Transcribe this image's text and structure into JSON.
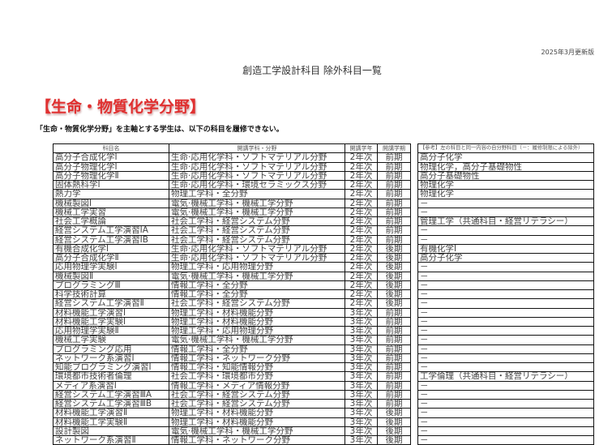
{
  "header": {
    "edition": "2025年3月更新版",
    "title": "創造工学設計科目 除外科目一覧"
  },
  "section": {
    "heading": "【生命・物質化学分野】",
    "note": "「生命・物質化学分野」を主軸とする学生は、以下の科目を履修できない。"
  },
  "table": {
    "headers": [
      "科目名",
      "開講学科・分野",
      "開講学年",
      "開講学期"
    ],
    "ref_header": "【参考】左の科目と同一内容の自分野科目（－：履修制限による除外）",
    "rows": [
      [
        "高分子合成化学Ⅰ",
        "生命·応用化学科・ソフトマテリアル分野",
        "2年次",
        "前期",
        "高分子化学"
      ],
      [
        "高分子物理化学Ⅰ",
        "生命·応用化学科・ソフトマテリアル分野",
        "2年次",
        "前期",
        "物理化学，高分子基礎物性"
      ],
      [
        "高分子物理化学Ⅱ",
        "生命·応用化学科・ソフトマテリアル分野",
        "2年次",
        "前期",
        "高分子基礎物性"
      ],
      [
        "固体熱科学Ⅰ",
        "生命·応用化学科・環境セラミックス分野",
        "2年次",
        "前期",
        "物理化学"
      ],
      [
        "熱力学",
        "物理工学科・全分野",
        "2年次",
        "前期",
        "物理化学"
      ],
      [
        "機械製図Ⅰ",
        "電気·機械工学科・機械工学分野",
        "2年次",
        "前期",
        "－"
      ],
      [
        "機械工学実習",
        "電気·機械工学科・機械工学分野",
        "2年次",
        "前期",
        "－"
      ],
      [
        "社会工学概論",
        "社会工学科・経営システム分野",
        "2年次",
        "前期",
        "管理工学（共通科目・経営リテラシー）"
      ],
      [
        "経営システム工学演習ⅠA",
        "社会工学科・経営システム分野",
        "2年次",
        "前期",
        "－"
      ],
      [
        "経営システム工学演習ⅠB",
        "社会工学科・経営システム分野",
        "2年次",
        "前期",
        "－"
      ],
      [
        "有機合成化学Ⅰ",
        "生命·応用化学科・ソフトマテリアル分野",
        "2年次",
        "後期",
        "有機化学Ⅰ"
      ],
      [
        "高分子合成化学Ⅱ",
        "生命·応用化学科・ソフトマテリアル分野",
        "2年次",
        "後期",
        "高分子化学"
      ],
      [
        "応用物理学実験Ⅰ",
        "物理工学科・応用物理分野",
        "2年次",
        "後期",
        "－"
      ],
      [
        "機械製図Ⅱ",
        "電気·機械工学科・機械工学分野",
        "2年次",
        "後期",
        "－"
      ],
      [
        "プログラミングⅢ",
        "情報工学科・全分野",
        "2年次",
        "後期",
        "－"
      ],
      [
        "科学技術計算",
        "情報工学科・全分野",
        "2年次",
        "後期",
        "－"
      ],
      [
        "経営システム工学演習Ⅱ",
        "社会工学科・経営システム分野",
        "2年次",
        "後期",
        "－"
      ],
      [
        "材料機能工学演習Ⅰ",
        "物理工学科・材料機能分野",
        "3年次",
        "前期",
        "－"
      ],
      [
        "材料機能工学実験Ⅰ",
        "物理工学科・材料機能分野",
        "3年次",
        "前期",
        "－"
      ],
      [
        "応用物理学実験Ⅱ",
        "物理工学科・応用物理分野",
        "3年次",
        "前期",
        "－"
      ],
      [
        "機械工学実験",
        "電気·機械工学科・機械工学分野",
        "3年次",
        "前期",
        "－"
      ],
      [
        "プログラミング応用",
        "情報工学科・全分野",
        "3年次",
        "前期",
        "－"
      ],
      [
        "ネットワーク系演習Ⅰ",
        "情報工学科・ネットワーク分野",
        "3年次",
        "前期",
        "－"
      ],
      [
        "知能プログラミング演習Ⅰ",
        "情報工学科・知能情報分野",
        "3年次",
        "前期",
        "－"
      ],
      [
        "環境都市技術者倫理",
        "社会工学科・環境都市分野",
        "3年次",
        "前期",
        "工学倫理（共通科目・経営リテラシー）"
      ],
      [
        "メディア系演習Ⅰ",
        "情報工学科・メディア情報分野",
        "3年次",
        "前期",
        "－"
      ],
      [
        "経営システム工学演習ⅢA",
        "社会工学科・経営システム分野",
        "3年次",
        "前期",
        "－"
      ],
      [
        "経営システム工学演習ⅢB",
        "社会工学科・経営システム分野",
        "3年次",
        "前期",
        "－"
      ],
      [
        "材料機能工学演習Ⅱ",
        "物理工学科・材料機能分野",
        "3年次",
        "後期",
        "－"
      ],
      [
        "材料機能工学実験Ⅱ",
        "物理工学科・材料機能分野",
        "3年次",
        "後期",
        "－"
      ],
      [
        "設計製図",
        "電気·機械工学科・機械工学分野",
        "3年次",
        "後期",
        "－"
      ],
      [
        "ネットワーク系演習Ⅱ",
        "情報工学科・ネットワーク分野",
        "3年次",
        "後期",
        "－"
      ]
    ]
  },
  "colors": {
    "heading": "#e03030"
  }
}
